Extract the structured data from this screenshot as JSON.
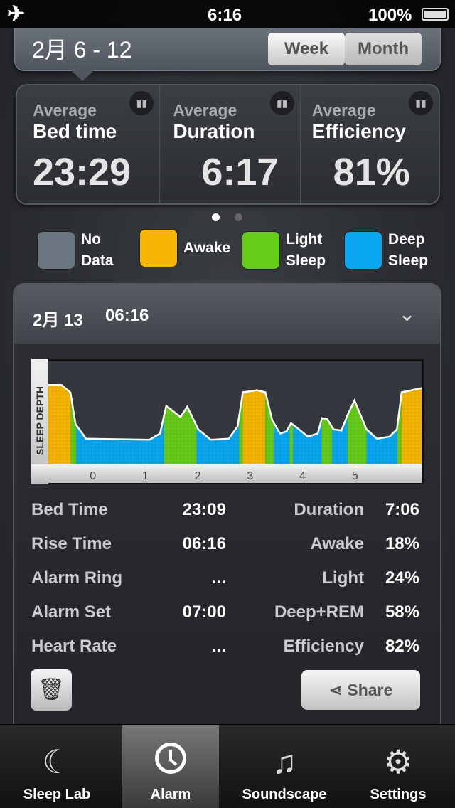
{
  "status_bar": {
    "time": "6:16",
    "battery": "100%",
    "airplane_icon": "airplane-icon",
    "battery_icon": "battery-icon"
  },
  "period": {
    "range": "2月 6 - 12",
    "segments": [
      "Week",
      "Month"
    ]
  },
  "summary": [
    {
      "label1": "Average",
      "label2": "Bed time",
      "value": "23:29"
    },
    {
      "label1": "Average",
      "label2": "Duration",
      "value": "6:17"
    },
    {
      "label1": "Average",
      "label2": "Efficiency",
      "value": "81%"
    }
  ],
  "page_dots": {
    "count": 2,
    "active": 0
  },
  "legend": [
    {
      "label1": "No",
      "label2": "Data",
      "color": "#6b7580"
    },
    {
      "label1": "Awake",
      "label2": "",
      "color": "#f5b500"
    },
    {
      "label1": "Light",
      "label2": "Sleep",
      "color": "#66cc1a"
    },
    {
      "label1": "Deep",
      "label2": "Sleep",
      "color": "#0aa6f0"
    }
  ],
  "record": {
    "date": "2月 13",
    "time": "06:16",
    "left": [
      {
        "k": "Bed Time",
        "v": "23:09"
      },
      {
        "k": "Rise Time",
        "v": "06:16"
      },
      {
        "k": "Alarm Ring",
        "v": "..."
      },
      {
        "k": "Alarm Set",
        "v": "07:00"
      },
      {
        "k": "Heart Rate",
        "v": "..."
      }
    ],
    "right": [
      {
        "k": "Duration",
        "v": "7:06"
      },
      {
        "k": "Awake",
        "v": "18%"
      },
      {
        "k": "Light",
        "v": "24%"
      },
      {
        "k": "Deep+REM",
        "v": "58%"
      },
      {
        "k": "Efficiency",
        "v": "82%"
      }
    ],
    "share": "Share"
  },
  "chart_data": {
    "type": "area",
    "ylabel": "SLEEP DEPTH",
    "xticks": [
      "0",
      "1",
      "2",
      "3",
      "4",
      "5"
    ],
    "xlim": [
      -0.85,
      6.27
    ],
    "ylim": [
      0,
      1
    ],
    "curve": [
      [
        -0.85,
        0.77
      ],
      [
        -0.6,
        0.77
      ],
      [
        -0.43,
        0.7
      ],
      [
        -0.33,
        0.39
      ],
      [
        -0.13,
        0.25
      ],
      [
        1.08,
        0.24
      ],
      [
        1.28,
        0.3
      ],
      [
        1.4,
        0.57
      ],
      [
        1.52,
        0.52
      ],
      [
        1.67,
        0.46
      ],
      [
        1.8,
        0.56
      ],
      [
        2.01,
        0.34
      ],
      [
        2.25,
        0.24
      ],
      [
        2.59,
        0.25
      ],
      [
        2.76,
        0.37
      ],
      [
        2.86,
        0.7
      ],
      [
        3.13,
        0.72
      ],
      [
        3.29,
        0.7
      ],
      [
        3.42,
        0.43
      ],
      [
        3.57,
        0.3
      ],
      [
        3.69,
        0.32
      ],
      [
        3.78,
        0.4
      ],
      [
        3.91,
        0.35
      ],
      [
        4.1,
        0.27
      ],
      [
        4.29,
        0.3
      ],
      [
        4.37,
        0.45
      ],
      [
        4.47,
        0.44
      ],
      [
        4.59,
        0.34
      ],
      [
        4.74,
        0.33
      ],
      [
        4.86,
        0.48
      ],
      [
        4.99,
        0.62
      ],
      [
        5.22,
        0.34
      ],
      [
        5.42,
        0.25
      ],
      [
        5.66,
        0.27
      ],
      [
        5.8,
        0.34
      ],
      [
        5.89,
        0.7
      ],
      [
        6.27,
        0.74
      ]
    ],
    "stages": [
      [
        "awake",
        -0.85,
        -0.42
      ],
      [
        "light",
        -0.42,
        -0.32
      ],
      [
        "deep",
        -0.32,
        1.36
      ],
      [
        "light",
        1.36,
        1.98
      ],
      [
        "deep",
        1.98,
        2.79
      ],
      [
        "light",
        2.79,
        2.86
      ],
      [
        "awake",
        2.86,
        3.29
      ],
      [
        "light",
        3.29,
        3.46
      ],
      [
        "deep",
        3.46,
        3.75
      ],
      [
        "light",
        3.75,
        3.82
      ],
      [
        "deep",
        3.82,
        4.36
      ],
      [
        "light",
        4.36,
        4.56
      ],
      [
        "deep",
        4.56,
        4.86
      ],
      [
        "light",
        4.86,
        5.22
      ],
      [
        "deep",
        5.22,
        5.8
      ],
      [
        "light",
        5.8,
        5.89
      ],
      [
        "awake",
        5.89,
        6.27
      ]
    ]
  },
  "tabs": [
    {
      "label": "Sleep Lab",
      "icon": "moon-icon"
    },
    {
      "label": "Alarm",
      "icon": "clock-icon",
      "selected": true
    },
    {
      "label": "Soundscape",
      "icon": "music-note-icon"
    },
    {
      "label": "Settings",
      "icon": "gear-icon"
    }
  ]
}
